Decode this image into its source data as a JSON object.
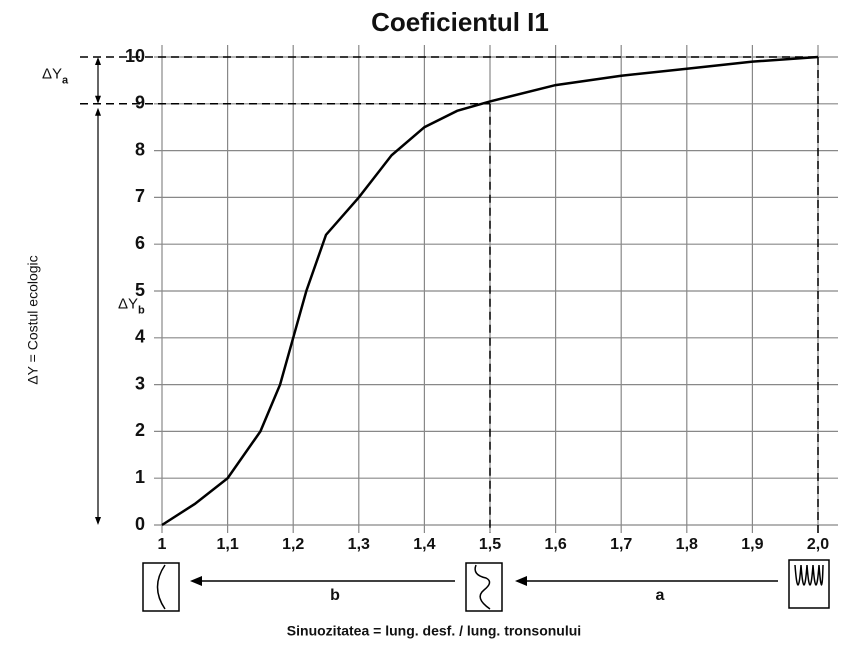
{
  "chart_data": {
    "type": "line",
    "title": "Coeficientul I1",
    "x": [
      1.0,
      1.05,
      1.1,
      1.15,
      1.18,
      1.2,
      1.22,
      1.25,
      1.3,
      1.35,
      1.4,
      1.45,
      1.5,
      1.6,
      1.7,
      1.8,
      1.9,
      2.0
    ],
    "values": [
      0,
      0.45,
      1.0,
      2.0,
      3.0,
      4.0,
      5.0,
      6.2,
      7.0,
      7.9,
      8.5,
      8.85,
      9.05,
      9.4,
      9.6,
      9.75,
      9.9,
      10
    ],
    "color": "#000000",
    "xlim": [
      1,
      2.0
    ],
    "ylim": [
      0,
      10
    ],
    "xticks": [
      1,
      {
        "value": 1.1,
        "label": "1,1"
      },
      {
        "value": 1.2,
        "label": "1,2"
      },
      {
        "value": 1.3,
        "label": "1,3"
      },
      {
        "value": 1.4,
        "label": "1,4"
      },
      {
        "value": 1.5,
        "label": "1,5"
      },
      {
        "value": 1.6,
        "label": "1,6"
      },
      {
        "value": 1.7,
        "label": "1,7"
      },
      {
        "value": 1.8,
        "label": "1,8"
      },
      {
        "value": 1.9,
        "label": "1,9"
      },
      {
        "value": 2.0,
        "label": "2,0"
      }
    ],
    "yticks": [
      0,
      1,
      2,
      3,
      4,
      5,
      6,
      7,
      8,
      9,
      10
    ],
    "grid": true,
    "reference_points": [
      {
        "x": 1.5,
        "y": 9
      },
      {
        "x": 2.0,
        "y": 10
      }
    ],
    "y_label": "ΔY = Costul ecologic",
    "x_label": "Sinuozitatea = lung. desf. / lung. tronsonului",
    "annotations": [
      {
        "text": "ΔY",
        "sub": "a"
      },
      {
        "text": "ΔY",
        "sub": "b"
      }
    ],
    "arrow_labels": [
      "b",
      "a"
    ]
  }
}
